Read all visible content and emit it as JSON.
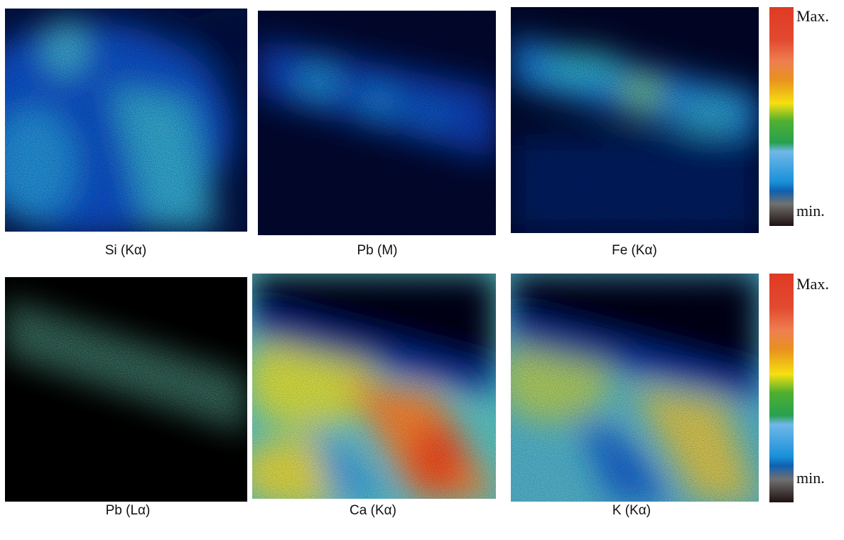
{
  "panels": [
    {
      "label": "Si (Kα)"
    },
    {
      "label": "Pb (M)"
    },
    {
      "label": "Fe (Kα)"
    },
    {
      "label": "Pb (Lα)"
    },
    {
      "label": "Ca (Kα)"
    },
    {
      "label": "K (Kα)"
    }
  ],
  "colorbars": [
    {
      "max_label": "Max.",
      "min_label": "min."
    },
    {
      "max_label": "Max.",
      "min_label": "min."
    }
  ]
}
